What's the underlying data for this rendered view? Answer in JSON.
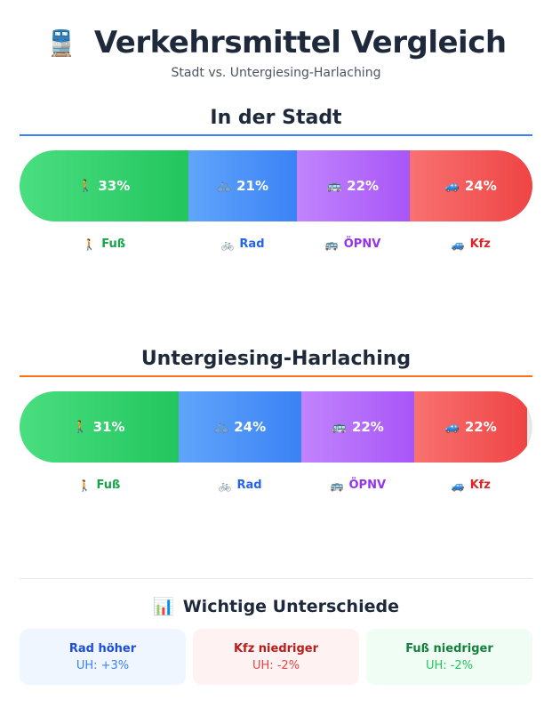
{
  "header": {
    "icon": "🚆",
    "icon_name": "train-icon",
    "title": "Verkehrsmittel Vergleich",
    "subtitle": "Stadt vs. Untergiesing-Harlaching"
  },
  "chart_data": {
    "type": "bar",
    "orientation": "horizontal-stacked",
    "title": "Verkehrsmittel Vergleich",
    "subtitle": "Stadt vs. Untergiesing-Harlaching",
    "unit": "%",
    "categories": [
      "Fuß",
      "Rad",
      "ÖPNV",
      "Kfz"
    ],
    "xlim": [
      0,
      100
    ],
    "series": [
      {
        "name": "In der Stadt",
        "values": [
          33,
          21,
          22,
          24
        ]
      },
      {
        "name": "Untergiesing-Harlaching",
        "values": [
          31,
          24,
          22,
          22
        ]
      }
    ]
  },
  "modes": [
    {
      "key": "fuss",
      "label": "Fuß",
      "emoji": "🚶",
      "icon_name": "pedestrian-icon",
      "grad_from": "#4ade80",
      "grad_to": "#22c55e",
      "text_color": "#16a34a"
    },
    {
      "key": "rad",
      "label": "Rad",
      "emoji": "🚲",
      "icon_name": "bicycle-icon",
      "grad_from": "#60a5fa",
      "grad_to": "#3b82f6",
      "text_color": "#2563eb"
    },
    {
      "key": "oepnv",
      "label": "ÖPNV",
      "emoji": "🚌",
      "icon_name": "bus-icon",
      "grad_from": "#c084fc",
      "grad_to": "#a855f7",
      "text_color": "#9333ea"
    },
    {
      "key": "kfz",
      "label": "Kfz",
      "emoji": "🚙",
      "icon_name": "car-icon",
      "grad_from": "#f87171",
      "grad_to": "#ef4444",
      "text_color": "#dc2626"
    }
  ],
  "sections": [
    {
      "title": "In der Stadt",
      "rule_color": "#3b82f6",
      "values": [
        33,
        21,
        22,
        24
      ]
    },
    {
      "title": "Untergiesing-Harlaching",
      "rule_color": "#f97316",
      "values": [
        31,
        24,
        22,
        22
      ]
    }
  ],
  "differences": {
    "icon": "📊",
    "icon_name": "bar-chart-icon",
    "title": "Wichtige Unterschiede",
    "cards": [
      {
        "title": "Rad höher",
        "value": "UH: +3%",
        "bg": "#eff6ff",
        "title_color": "#1d4ed8",
        "value_color": "#3b82f6"
      },
      {
        "title": "Kfz niedriger",
        "value": "UH: -2%",
        "bg": "#fef2f2",
        "title_color": "#b91c1c",
        "value_color": "#ef4444"
      },
      {
        "title": "Fuß niedriger",
        "value": "UH: -2%",
        "bg": "#f0fdf4",
        "title_color": "#15803d",
        "value_color": "#22c55e"
      }
    ]
  }
}
